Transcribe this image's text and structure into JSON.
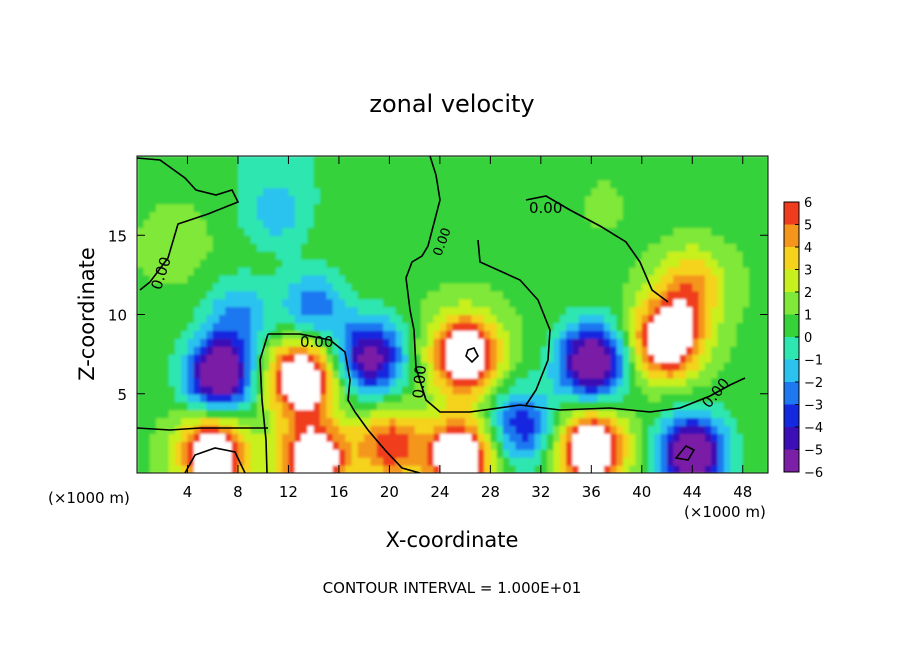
{
  "chart_data": {
    "type": "heatmap",
    "title": "zonal velocity",
    "xlabel": "X-coordinate",
    "ylabel": "Z-coordinate",
    "x_unit_left": "(×1000 m)",
    "x_unit_right": "(×1000 m)",
    "footer": "CONTOUR INTERVAL = 1.000E+01",
    "xlim": [
      0,
      50
    ],
    "ylim": [
      0,
      20
    ],
    "x_ticks": [
      4,
      8,
      12,
      16,
      20,
      24,
      28,
      32,
      36,
      40,
      44,
      48
    ],
    "y_ticks": [
      5,
      10,
      15
    ],
    "x_tick_labels": [
      "4",
      "8",
      "12",
      "16",
      "20",
      "24",
      "28",
      "32",
      "36",
      "40",
      "44",
      "48"
    ],
    "y_tick_labels": [
      "5",
      "10",
      "15"
    ],
    "contour_labels": [
      "0.00",
      "0.00",
      "0.00",
      "0.00",
      "0.00",
      "0.00"
    ],
    "colorbar": {
      "min": -6,
      "max": 6,
      "tick_values": [
        6,
        5,
        4,
        3,
        2,
        1,
        0,
        -1,
        -2,
        -3,
        -4,
        -5,
        -6
      ],
      "tick_labels": [
        "6",
        "5",
        "4",
        "3",
        "2",
        "1",
        "0",
        "−1",
        "−2",
        "−3",
        "−4",
        "−5",
        "−6"
      ],
      "colors": [
        "#7a1fa6",
        "#3b0fb5",
        "#1428e0",
        "#1e78f0",
        "#2cc2ee",
        "#2ee6b0",
        "#36d23a",
        "#7fe838",
        "#c8f01e",
        "#f5d21c",
        "#f5961c",
        "#f03c1e",
        "#f08080",
        "#ffffff"
      ]
    },
    "blobs": [
      {
        "x": 6.5,
        "z": 6.2,
        "value": -8
      },
      {
        "x": 8.0,
        "z": 10.0,
        "value": -2.8
      },
      {
        "x": 14.0,
        "z": 10.5,
        "value": -3.5
      },
      {
        "x": 13.0,
        "z": 6.0,
        "value": 8
      },
      {
        "x": 6.0,
        "z": 1.3,
        "value": 8
      },
      {
        "x": 14.0,
        "z": 0.8,
        "value": 8
      },
      {
        "x": 20.0,
        "z": 1.8,
        "value": 5
      },
      {
        "x": 18.5,
        "z": 7.3,
        "value": -6.5
      },
      {
        "x": 26.0,
        "z": 7.5,
        "value": 8
      },
      {
        "x": 25.5,
        "z": 1.0,
        "value": 8
      },
      {
        "x": 30.5,
        "z": 3.0,
        "value": -4.5
      },
      {
        "x": 36.0,
        "z": 7.0,
        "value": -8
      },
      {
        "x": 36.0,
        "z": 1.6,
        "value": 8
      },
      {
        "x": 42.0,
        "z": 8.5,
        "value": 8
      },
      {
        "x": 44.0,
        "z": 11.8,
        "value": 3.5
      },
      {
        "x": 44.0,
        "z": 1.3,
        "value": -8
      },
      {
        "x": 11.0,
        "z": 16.5,
        "value": -2.2
      },
      {
        "x": 3.0,
        "z": 15.0,
        "value": 1.2
      },
      {
        "x": 37.0,
        "z": 17.5,
        "value": 0.8
      }
    ]
  }
}
